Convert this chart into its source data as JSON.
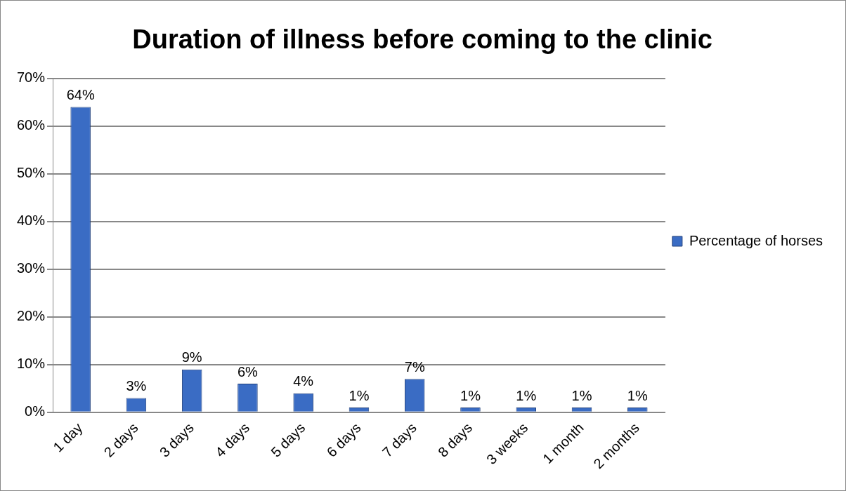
{
  "chart_data": {
    "type": "bar",
    "title": "Duration of illness before coming to the clinic",
    "categories": [
      "1 day",
      "2 days",
      "3 days",
      "4 days",
      "5 days",
      "6 days",
      "7 days",
      "8 days",
      "3 weeks",
      "1 month",
      "2 months"
    ],
    "series": [
      {
        "name": "Percentage of horses",
        "color": "#3a6cc4",
        "values": [
          64,
          3,
          9,
          6,
          4,
          1,
          7,
          1,
          1,
          1,
          1
        ],
        "value_labels": [
          "64%",
          "3%",
          "9%",
          "6%",
          "4%",
          "1%",
          "7%",
          "1%",
          "1%",
          "1%",
          "1%"
        ]
      }
    ],
    "ylim": [
      0,
      70
    ],
    "yticks": [
      {
        "value": 0,
        "label": "0%"
      },
      {
        "value": 10,
        "label": "10%"
      },
      {
        "value": 20,
        "label": "20%"
      },
      {
        "value": 30,
        "label": "30%"
      },
      {
        "value": 40,
        "label": "40%"
      },
      {
        "value": 50,
        "label": "50%"
      },
      {
        "value": 60,
        "label": "60%"
      },
      {
        "value": 70,
        "label": "70%"
      }
    ],
    "grid": "y",
    "legend": "right"
  }
}
